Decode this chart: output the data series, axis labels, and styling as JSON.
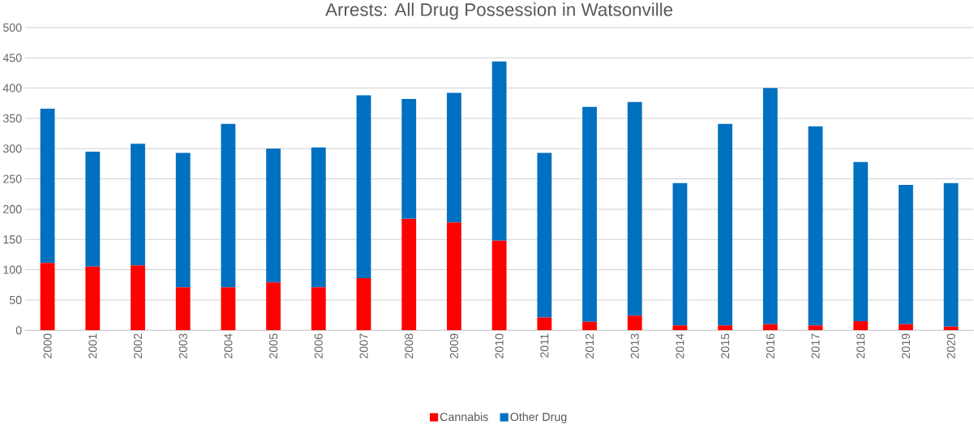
{
  "chart_data": {
    "type": "bar",
    "title": "Arrests:  All Drug Possession  in Watsonville",
    "categories": [
      "2000",
      "2001",
      "2002",
      "2003",
      "2004",
      "2005",
      "2006",
      "2007",
      "2008",
      "2009",
      "2010",
      "2011",
      "2012",
      "2013",
      "2014",
      "2015",
      "2016",
      "2017",
      "2018",
      "2019",
      "2020"
    ],
    "stacked": true,
    "series": [
      {
        "name": "Cannabis",
        "color": "#ff0000",
        "values": [
          111,
          105,
          107,
          71,
          71,
          79,
          71,
          86,
          184,
          178,
          148,
          21,
          14,
          24,
          8,
          8,
          10,
          8,
          15,
          10,
          6
        ]
      },
      {
        "name": "Other Drug",
        "color": "#0070c0",
        "values": [
          255,
          190,
          201,
          222,
          270,
          221,
          231,
          302,
          198,
          214,
          296,
          272,
          355,
          353,
          235,
          333,
          390,
          329,
          263,
          230,
          237
        ]
      }
    ],
    "ylim": [
      0,
      500
    ],
    "yticks": [
      0,
      50,
      100,
      150,
      200,
      250,
      300,
      350,
      400,
      450,
      500
    ],
    "grid": "y",
    "legend": "bottom"
  }
}
